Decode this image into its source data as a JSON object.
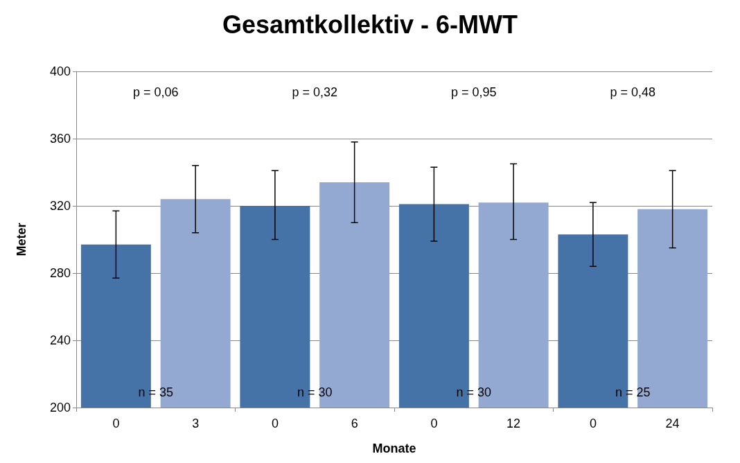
{
  "chart_data": {
    "type": "bar",
    "title": "Gesamtkollektiv - 6-MWT",
    "xlabel": "Monate",
    "ylabel": "Meter",
    "categories": [
      "0",
      "3",
      "0",
      "6",
      "0",
      "12",
      "0",
      "24"
    ],
    "values": [
      297,
      324,
      320,
      334,
      321,
      322,
      303,
      318
    ],
    "colors": [
      "#4572a7",
      "#94a9d2",
      "#4572a7",
      "#94a9d2",
      "#4572a7",
      "#94a9d2",
      "#4572a7",
      "#94a9d2"
    ],
    "errors": [
      [
        277,
        317
      ],
      [
        304,
        344
      ],
      [
        300,
        341
      ],
      [
        310,
        358
      ],
      [
        299,
        343
      ],
      [
        300,
        345
      ],
      [
        284,
        322
      ],
      [
        295,
        341
      ]
    ],
    "ylim": [
      200,
      400
    ],
    "yticks": [
      200,
      240,
      280,
      320,
      360,
      400
    ],
    "grid": "y",
    "annotations": [
      "p = 0,06",
      "p = 0,32",
      "p = 0,95",
      "p = 0,48",
      "n = 35",
      "n = 30",
      "n = 30",
      "n = 25"
    ]
  }
}
